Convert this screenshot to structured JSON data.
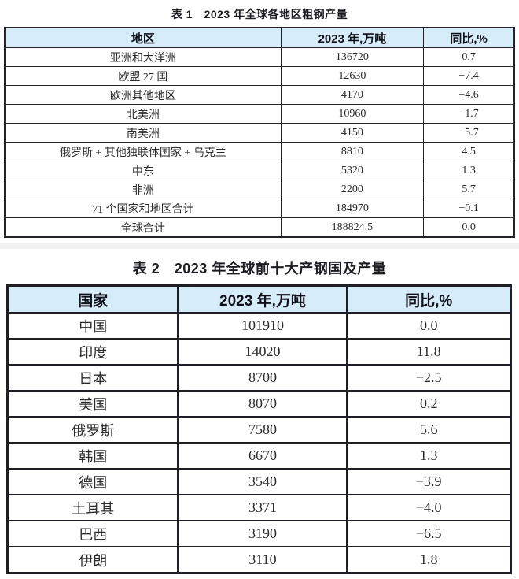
{
  "colors": {
    "header_background": "#d6ecf9",
    "border": "#23232b",
    "header_text": "#10101a",
    "body_text": "#2b2b2b",
    "divider_band": "#f1f1f1"
  },
  "table1": {
    "title": "表 1　2023 年全球各地区粗钢产量",
    "columns": [
      "地区",
      "2023 年,万吨",
      "同比,%"
    ],
    "rows": [
      [
        "亚洲和大洋洲",
        "136720",
        "0.7"
      ],
      [
        "欧盟 27 国",
        "12630",
        "−7.4"
      ],
      [
        "欧洲其他地区",
        "4170",
        "−4.6"
      ],
      [
        "北美洲",
        "10960",
        "−1.7"
      ],
      [
        "南美洲",
        "4150",
        "−5.7"
      ],
      [
        "俄罗斯 + 其他独联体国家 + 乌克兰",
        "8810",
        "4.5"
      ],
      [
        "中东",
        "5320",
        "1.3"
      ],
      [
        "非洲",
        "2200",
        "5.7"
      ],
      [
        "71 个国家和地区合计",
        "184970",
        "−0.1"
      ],
      [
        "全球合计",
        "188824.5",
        "0.0"
      ]
    ]
  },
  "table2": {
    "title": "表 2　2023 年全球前十大产钢国及产量",
    "columns": [
      "国家",
      "2023 年,万吨",
      "同比,%"
    ],
    "rows": [
      [
        "中国",
        "101910",
        "0.0"
      ],
      [
        "印度",
        "14020",
        "11.8"
      ],
      [
        "日本",
        "8700",
        "−2.5"
      ],
      [
        "美国",
        "8070",
        "0.2"
      ],
      [
        "俄罗斯",
        "7580",
        "5.6"
      ],
      [
        "韩国",
        "6670",
        "1.3"
      ],
      [
        "德国",
        "3540",
        "−3.9"
      ],
      [
        "土耳其",
        "3371",
        "−4.0"
      ],
      [
        "巴西",
        "3190",
        "−6.5"
      ],
      [
        "伊朗",
        "3110",
        "1.8"
      ]
    ]
  }
}
